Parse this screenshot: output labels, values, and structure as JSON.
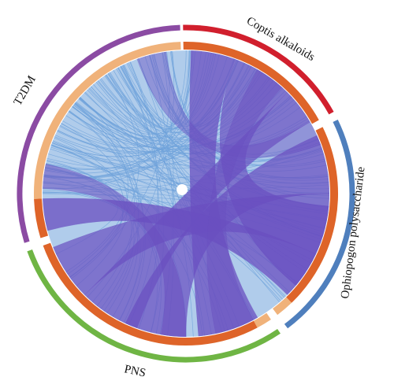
{
  "diagram": {
    "type": "chord",
    "groups": [
      {
        "id": "coptis",
        "label": "Coptis alkaloids",
        "color": "#d11f2d"
      },
      {
        "id": "ophio",
        "label": "Ophiopogon polysaccharide",
        "color": "#4f7fbd"
      },
      {
        "id": "pns",
        "label": "PNS",
        "color": "#6fb544"
      },
      {
        "id": "t2dm",
        "label": "T2DM",
        "color": "#8b4ba3"
      }
    ],
    "inner_track_colors": {
      "target_segment": "#f0b27a",
      "shared_segment": "#de6429"
    },
    "link_colors": {
      "target_links": "#6fa3db",
      "shared_links": "#6a4fc0"
    }
  }
}
